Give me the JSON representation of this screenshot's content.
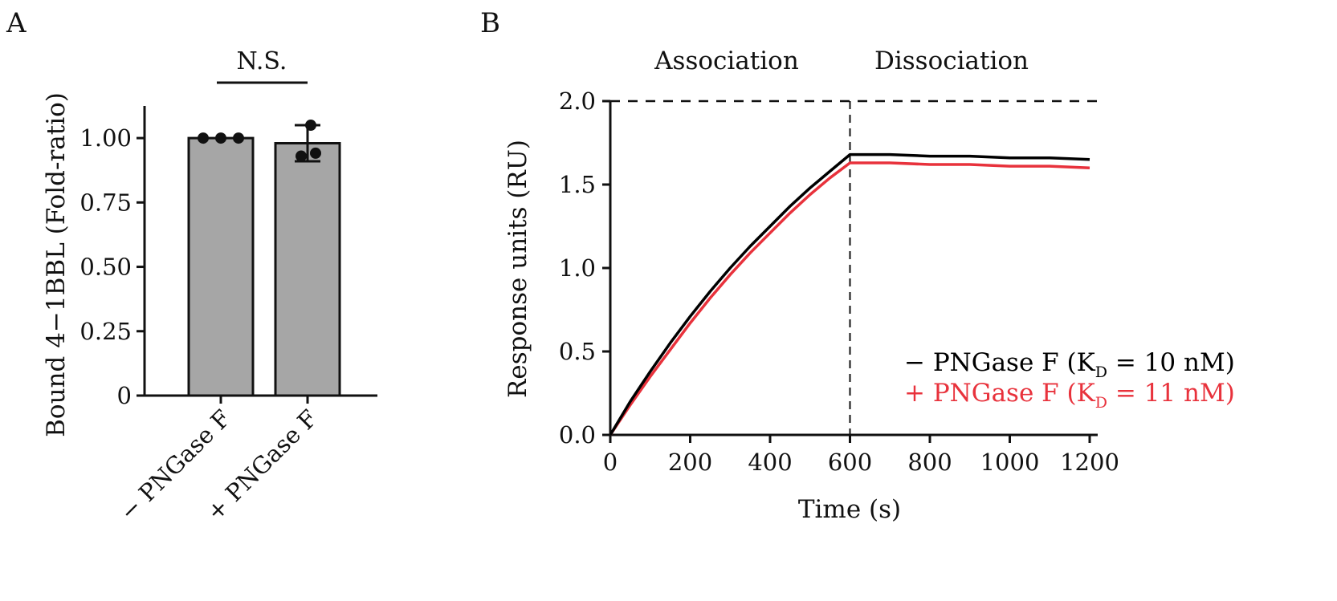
{
  "chart_data": [
    {
      "panel": "A",
      "type": "bar",
      "ylabel": "Bound 4−1BBL  (Fold-ratio)",
      "ylim": [
        0,
        1.1
      ],
      "yticks": [
        0,
        0.25,
        0.5,
        0.75,
        1.0
      ],
      "ytick_labels": [
        "0",
        "0.25",
        "0.50",
        "0.75",
        "1.00"
      ],
      "categories": [
        "− PNGase F",
        "+ PNGase F"
      ],
      "values": [
        1.0,
        0.98
      ],
      "error": [
        0.0,
        0.07
      ],
      "points": [
        [
          1.0,
          1.0,
          1.0
        ],
        [
          1.05,
          0.93,
          0.96
        ]
      ],
      "bar_color": "#a6a6a6",
      "significance": "N.S."
    },
    {
      "panel": "B",
      "type": "line",
      "xlabel": "Time (s)",
      "ylabel": "Response units (RU)",
      "xlim": [
        0,
        1200
      ],
      "ylim": [
        0,
        2.0
      ],
      "xticks": [
        0,
        200,
        400,
        600,
        800,
        1000,
        1200
      ],
      "yticks": [
        0.0,
        0.5,
        1.0,
        1.5,
        2.0
      ],
      "ytick_labels": [
        "0.0",
        "0.5",
        "1.0",
        "1.5",
        "2.0"
      ],
      "phase_labels": [
        "Association",
        "Dissociation"
      ],
      "phase_boundary": 600,
      "reference_line_y": 2.0,
      "x": [
        0,
        50,
        100,
        150,
        200,
        250,
        300,
        350,
        400,
        450,
        500,
        550,
        600,
        700,
        800,
        900,
        1000,
        1100,
        1200
      ],
      "series": [
        {
          "name": "− PNGase F",
          "legend_main": "− PNGase F (K",
          "legend_sub": "D",
          "legend_tail": " = 10 nM)",
          "color": "#000000",
          "values": [
            0.0,
            0.2,
            0.38,
            0.55,
            0.71,
            0.86,
            1.0,
            1.13,
            1.25,
            1.37,
            1.48,
            1.58,
            1.68,
            1.68,
            1.67,
            1.67,
            1.66,
            1.66,
            1.65
          ]
        },
        {
          "name": "+ PNGase F",
          "legend_main": "+ PNGase F (K",
          "legend_sub": "D",
          "legend_tail": " = 11 nM)",
          "color": "#e8323c",
          "values": [
            0.0,
            0.18,
            0.35,
            0.51,
            0.67,
            0.82,
            0.96,
            1.09,
            1.21,
            1.33,
            1.44,
            1.54,
            1.63,
            1.63,
            1.62,
            1.62,
            1.61,
            1.61,
            1.6
          ]
        }
      ]
    }
  ]
}
